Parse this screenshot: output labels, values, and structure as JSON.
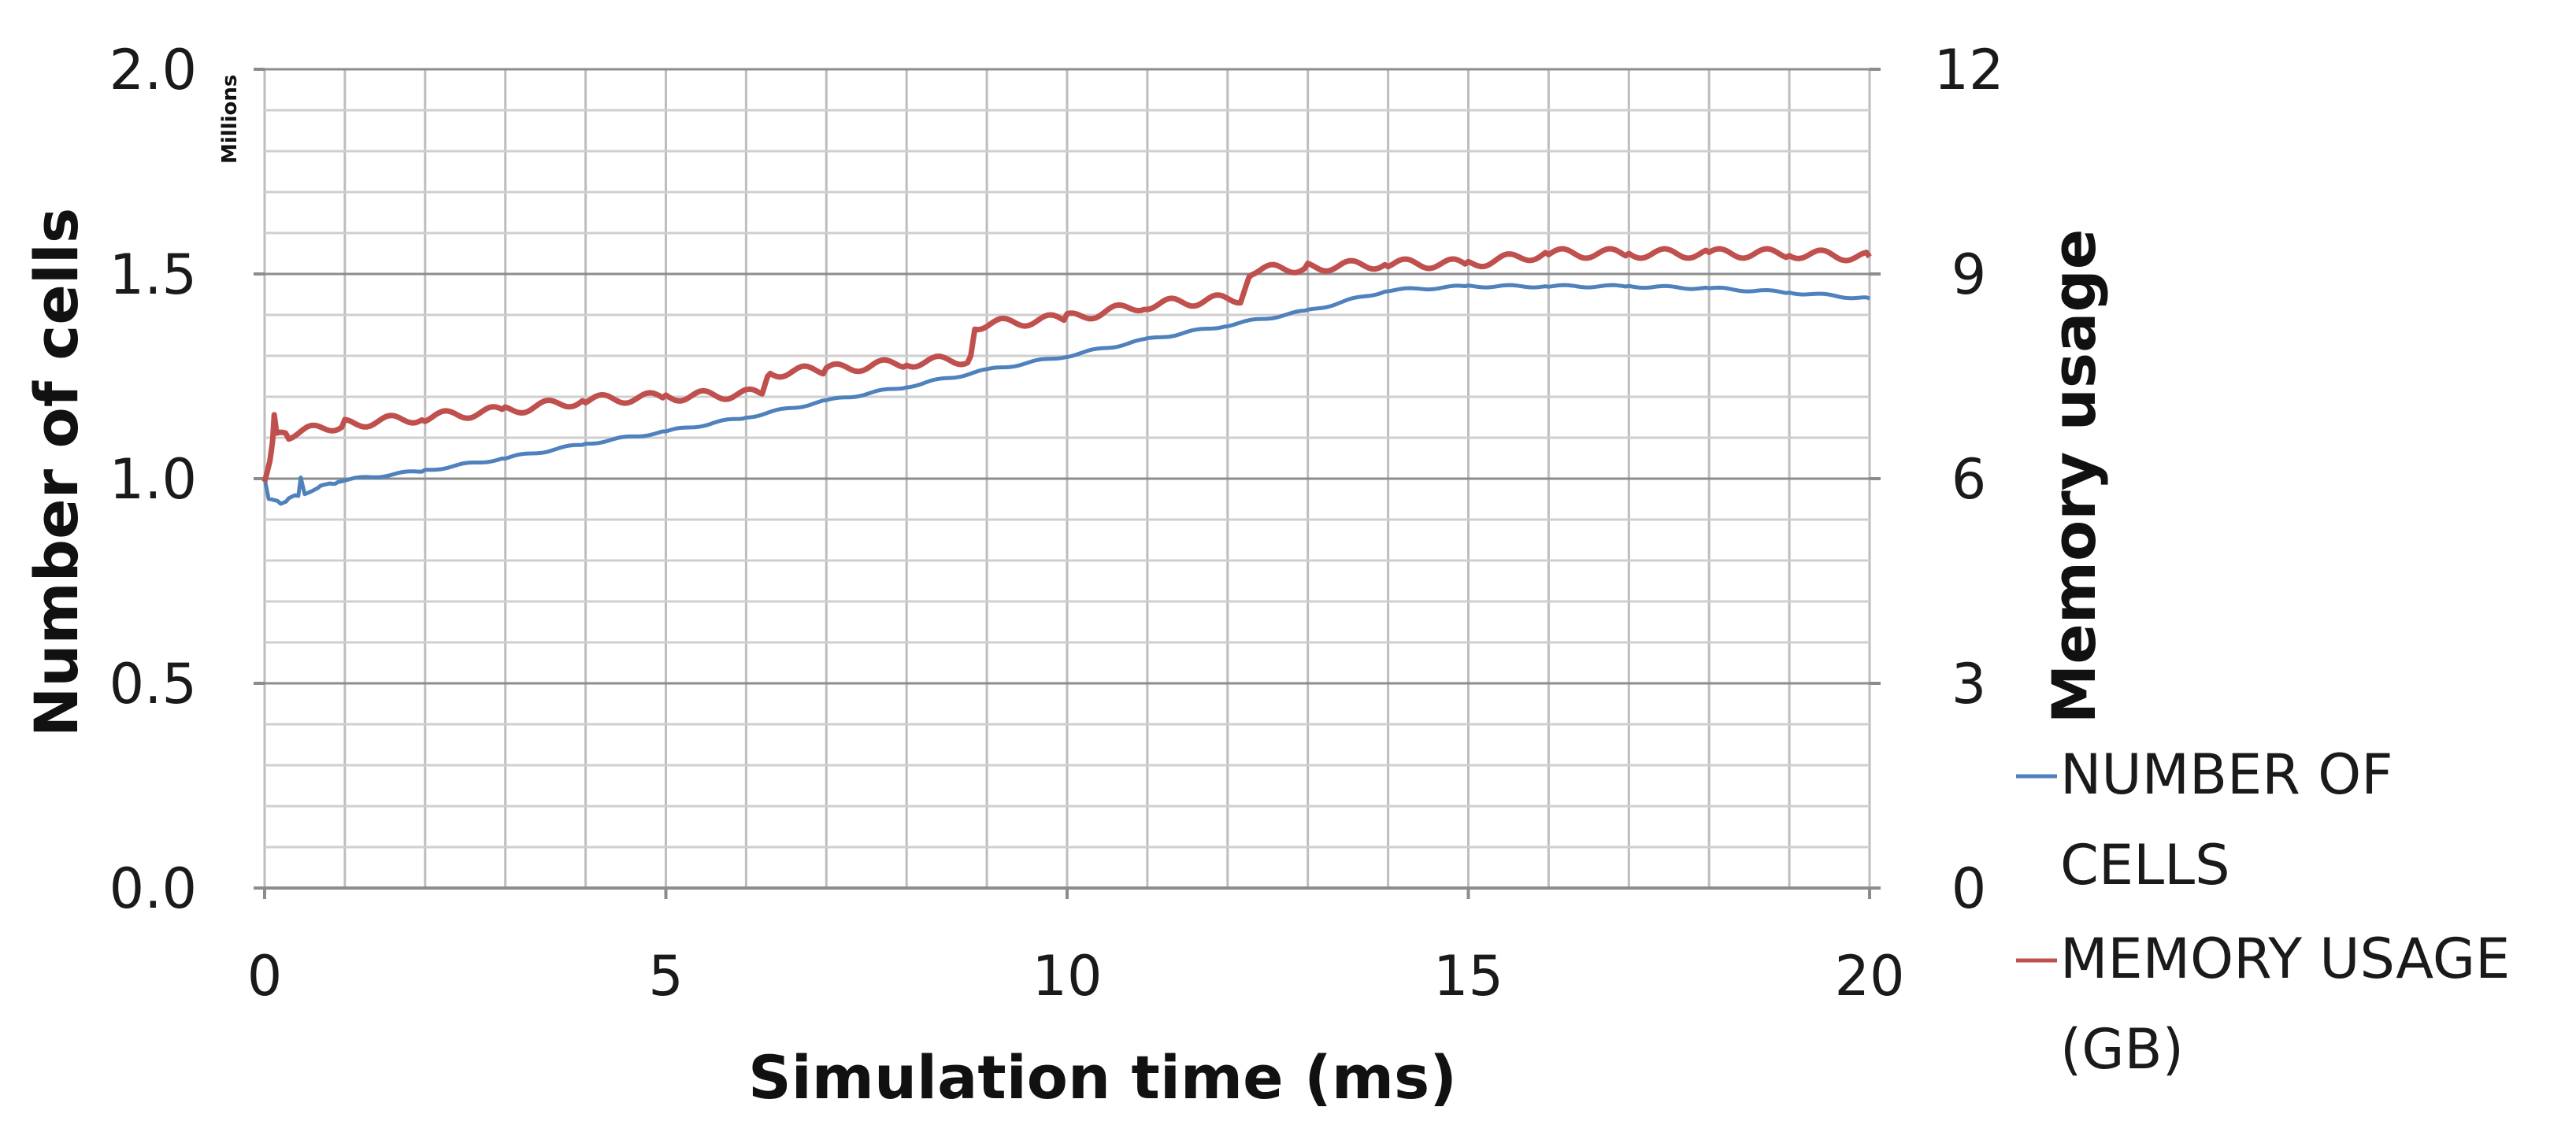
{
  "chart_data": {
    "type": "line",
    "title": "",
    "xlabel": "Simulation time (ms)",
    "ylabel": "Number of cells",
    "y2label": "Memory usage",
    "yunit": "Millions",
    "xlim": [
      0,
      20
    ],
    "ylim": [
      0,
      2.0
    ],
    "y2lim": [
      0,
      12
    ],
    "grid": true,
    "legend_position": "right",
    "x_ticks": [
      0,
      5,
      10,
      15,
      20
    ],
    "y_ticks": [
      "0.0",
      "0.5",
      "1.0",
      "1.5",
      "2.0"
    ],
    "y2_ticks": [
      "0",
      "3",
      "6",
      "9",
      "12"
    ],
    "series": [
      {
        "name": "NUMBER OF CELLS",
        "name_lines": [
          "NUMBER OF",
          "CELLS"
        ],
        "axis": "left",
        "color": "#4f81bd",
        "points": [
          [
            0,
            1.0
          ],
          [
            0.05,
            0.95
          ],
          [
            0.2,
            0.94
          ],
          [
            0.3,
            0.95
          ],
          [
            0.42,
            0.96
          ],
          [
            0.45,
            1.0
          ],
          [
            0.5,
            0.965
          ],
          [
            0.7,
            0.98
          ],
          [
            0.85,
            0.99
          ],
          [
            0.88,
            0.985
          ],
          [
            0.95,
            0.995
          ],
          [
            2,
            1.02
          ],
          [
            3,
            1.05
          ],
          [
            4,
            1.085
          ],
          [
            5,
            1.115
          ],
          [
            6,
            1.15
          ],
          [
            7,
            1.19
          ],
          [
            8,
            1.225
          ],
          [
            9,
            1.265
          ],
          [
            10,
            1.3
          ],
          [
            11,
            1.34
          ],
          [
            12,
            1.375
          ],
          [
            13,
            1.41
          ],
          [
            14,
            1.46
          ],
          [
            15,
            1.47
          ],
          [
            16,
            1.47
          ],
          [
            17,
            1.47
          ],
          [
            18,
            1.465
          ],
          [
            19,
            1.455
          ],
          [
            20,
            1.44
          ]
        ]
      },
      {
        "name": "MEMORY USAGE (GB)",
        "name_lines": [
          "MEMORY USAGE",
          "(GB)"
        ],
        "axis": "right",
        "color": "#c0504d",
        "points": [
          [
            0,
            6.0
          ],
          [
            0.1,
            6.5
          ],
          [
            0.12,
            7.0
          ],
          [
            0.15,
            6.6
          ],
          [
            0.3,
            6.65
          ],
          [
            1,
            6.8
          ],
          [
            2,
            6.9
          ],
          [
            3,
            7.0
          ],
          [
            4,
            7.15
          ],
          [
            5,
            7.2
          ],
          [
            6.2,
            7.25
          ],
          [
            6.3,
            7.55
          ],
          [
            7,
            7.6
          ],
          [
            8,
            7.7
          ],
          [
            8.8,
            7.75
          ],
          [
            8.85,
            8.25
          ],
          [
            10,
            8.35
          ],
          [
            11,
            8.55
          ],
          [
            12.2,
            8.65
          ],
          [
            12.3,
            9.05
          ],
          [
            13,
            9.1
          ],
          [
            14,
            9.15
          ],
          [
            15,
            9.15
          ],
          [
            16,
            9.3
          ],
          [
            17,
            9.3
          ],
          [
            18,
            9.3
          ],
          [
            19,
            9.3
          ],
          [
            20,
            9.25
          ]
        ]
      }
    ]
  }
}
